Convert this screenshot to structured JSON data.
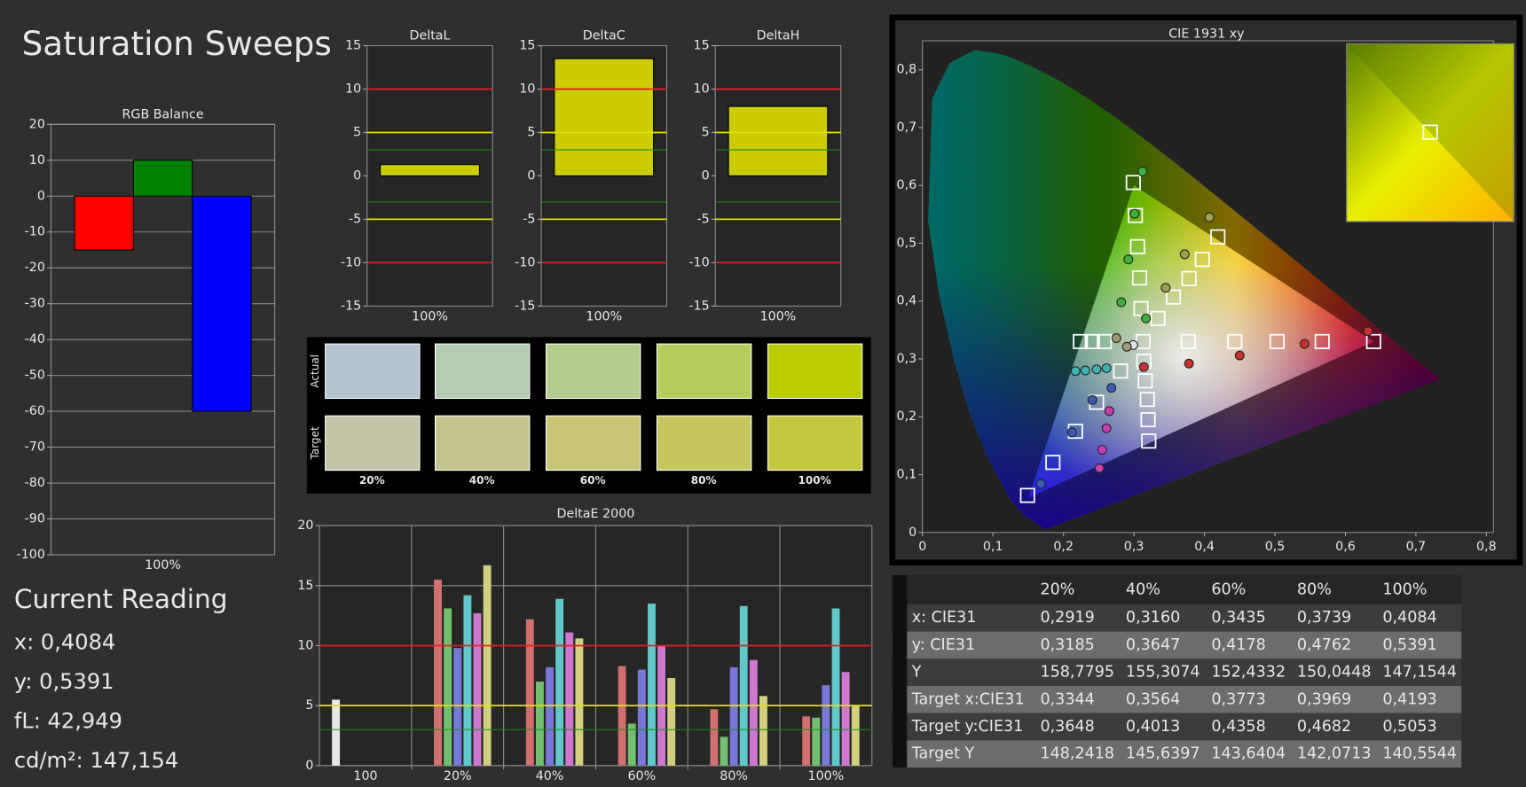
{
  "title": "Saturation Sweeps",
  "current_reading": {
    "title": "Current Reading",
    "lines": [
      "x: 0,4084",
      "y: 0,5391",
      "fL: 42,949",
      "cd/m²: 147,154"
    ]
  },
  "swatches": {
    "row_labels": [
      "Actual",
      "Target"
    ],
    "columns": [
      "20%",
      "40%",
      "60%",
      "80%",
      "100%"
    ],
    "actual_colors": [
      "#b4c4d2",
      "#b4cdb2",
      "#b4cc8c",
      "#b4cc5c",
      "#b8cc00"
    ],
    "target_colors": [
      "#c4c4a8",
      "#c4c48e",
      "#c6c676",
      "#c6c65e",
      "#c6c63e"
    ]
  },
  "table": {
    "header": [
      "",
      "20%",
      "40%",
      "60%",
      "80%",
      "100%"
    ],
    "rows": [
      [
        "x: CIE31",
        "0,2919",
        "0,3160",
        "0,3435",
        "0,3739",
        "0,4084"
      ],
      [
        "y: CIE31",
        "0,3185",
        "0,3647",
        "0,4178",
        "0,4762",
        "0,5391"
      ],
      [
        "Y",
        "158,7795",
        "155,3074",
        "152,4332",
        "150,0448",
        "147,1544"
      ],
      [
        "Target x:CIE31",
        "0,3344",
        "0,3564",
        "0,3773",
        "0,3969",
        "0,4193"
      ],
      [
        "Target y:CIE31",
        "0,3648",
        "0,4013",
        "0,4358",
        "0,4682",
        "0,5053"
      ],
      [
        "Target Y",
        "148,2418",
        "145,6397",
        "143,6404",
        "142,0713",
        "140,5544"
      ]
    ]
  },
  "chart_data": [
    {
      "type": "bar",
      "title": "RGB Balance",
      "categories": [
        "100%"
      ],
      "series": [
        {
          "color": "#ff0000",
          "values": [
            -15
          ]
        },
        {
          "color": "#008000",
          "values": [
            10
          ]
        },
        {
          "color": "#0000ff",
          "values": [
            -60
          ]
        }
      ],
      "ylim": [
        -100,
        20
      ],
      "yticks": [
        -100,
        -90,
        -80,
        -70,
        -60,
        -50,
        -40,
        -30,
        -20,
        -10,
        0,
        10,
        20
      ],
      "grid": true
    },
    {
      "type": "bar",
      "title": "DeltaL",
      "categories": [
        "100%"
      ],
      "values": [
        1.3
      ],
      "color": "#cccc00",
      "ylim": [
        -15,
        15
      ],
      "yticks": [
        -15,
        -10,
        -5,
        0,
        5,
        10,
        15
      ],
      "grid": false,
      "ref_lines": [
        {
          "value": 10,
          "color": "#e02020"
        },
        {
          "value": -10,
          "color": "#e02020"
        },
        {
          "value": 5,
          "color": "#e0e000"
        },
        {
          "value": -5,
          "color": "#e0e000"
        },
        {
          "value": 3,
          "color": "#1a8a1a"
        },
        {
          "value": -3,
          "color": "#1a8a1a"
        }
      ]
    },
    {
      "type": "bar",
      "title": "DeltaC",
      "categories": [
        "100%"
      ],
      "values": [
        13.5
      ],
      "color": "#cccc00",
      "ylim": [
        -15,
        15
      ],
      "yticks": [
        -15,
        -10,
        -5,
        0,
        5,
        10,
        15
      ],
      "grid": false,
      "ref_lines": [
        {
          "value": 10,
          "color": "#e02020"
        },
        {
          "value": -10,
          "color": "#e02020"
        },
        {
          "value": 5,
          "color": "#e0e000"
        },
        {
          "value": -5,
          "color": "#e0e000"
        },
        {
          "value": 3,
          "color": "#1a8a1a"
        },
        {
          "value": -3,
          "color": "#1a8a1a"
        }
      ]
    },
    {
      "type": "bar",
      "title": "DeltaH",
      "categories": [
        "100%"
      ],
      "values": [
        8
      ],
      "color": "#cccc00",
      "ylim": [
        -15,
        15
      ],
      "yticks": [
        -15,
        -10,
        -5,
        0,
        5,
        10,
        15
      ],
      "grid": false,
      "ref_lines": [
        {
          "value": 10,
          "color": "#e02020"
        },
        {
          "value": -10,
          "color": "#e02020"
        },
        {
          "value": 5,
          "color": "#e0e000"
        },
        {
          "value": -5,
          "color": "#e0e000"
        },
        {
          "value": 3,
          "color": "#1a8a1a"
        },
        {
          "value": -3,
          "color": "#1a8a1a"
        }
      ]
    },
    {
      "type": "bar",
      "title": "DeltaE 2000",
      "categories": [
        "100",
        "20%",
        "40%",
        "60%",
        "80%",
        "100%"
      ],
      "series": [
        {
          "color": "#e8e8e8",
          "values": [
            5.5,
            null,
            null,
            null,
            null,
            null
          ]
        },
        {
          "color": "#d07070",
          "values": [
            null,
            15.5,
            12.2,
            8.3,
            4.7,
            4.1
          ]
        },
        {
          "color": "#70c070",
          "values": [
            null,
            13.1,
            7,
            3.5,
            2.4,
            4
          ]
        },
        {
          "color": "#7878d8",
          "values": [
            null,
            9.8,
            8.2,
            8,
            8.2,
            6.7
          ]
        },
        {
          "color": "#60c8c8",
          "values": [
            null,
            14.2,
            13.9,
            13.5,
            13.3,
            13.1
          ]
        },
        {
          "color": "#d078d0",
          "values": [
            null,
            12.7,
            11.1,
            10,
            8.8,
            7.8
          ]
        },
        {
          "color": "#d0d080",
          "values": [
            null,
            16.7,
            10.6,
            7.3,
            5.8,
            5
          ]
        }
      ],
      "ylim": [
        0,
        20
      ],
      "yticks": [
        0,
        5,
        10,
        15,
        20
      ],
      "grid": true,
      "ref_lines": [
        {
          "value": 10,
          "color": "#e02020"
        },
        {
          "value": 5,
          "color": "#e0e000"
        },
        {
          "value": 3,
          "color": "#1a8a1a"
        }
      ]
    },
    {
      "type": "scatter",
      "title": "CIE 1931 xy",
      "xlim": [
        0,
        0.81
      ],
      "ylim": [
        0,
        0.85
      ],
      "xticks": [
        0,
        {
          "value": 0.1,
          "label": "0,1"
        },
        {
          "value": 0.2,
          "label": "0,2"
        },
        {
          "value": 0.3,
          "label": "0,3"
        },
        {
          "value": 0.4,
          "label": "0,4"
        },
        {
          "value": 0.5,
          "label": "0,5"
        },
        {
          "value": 0.6,
          "label": "0,6"
        },
        {
          "value": 0.7,
          "label": "0,7"
        },
        {
          "value": 0.8,
          "label": "0,8"
        }
      ],
      "yticks": [
        0,
        {
          "value": 0.1,
          "label": "0,1"
        },
        {
          "value": 0.2,
          "label": "0,2"
        },
        {
          "value": 0.3,
          "label": "0,3"
        },
        {
          "value": 0.4,
          "label": "0,4"
        },
        {
          "value": 0.5,
          "label": "0,5"
        },
        {
          "value": 0.6,
          "label": "0,6"
        },
        {
          "value": 0.7,
          "label": "0,7"
        },
        {
          "value": 0.8,
          "label": "0,8"
        }
      ],
      "series": [
        {
          "marker": "square",
          "color": "#ffffff",
          "x": [
            0.224,
            0.241,
            0.258,
            0.313,
            0.377,
            0.443,
            0.503,
            0.567,
            0.64,
            0.149,
            0.185,
            0.217,
            0.247,
            0.281,
            0.299,
            0.302,
            0.305,
            0.308,
            0.31,
            0.419,
            0.397,
            0.378,
            0.356,
            0.334,
            0.321,
            0.32,
            0.319,
            0.316,
            0.314
          ],
          "y": [
            0.33,
            0.33,
            0.33,
            0.33,
            0.33,
            0.33,
            0.33,
            0.33,
            0.33,
            0.064,
            0.121,
            0.175,
            0.225,
            0.279,
            0.605,
            0.548,
            0.494,
            0.44,
            0.387,
            0.511,
            0.472,
            0.439,
            0.407,
            0.37,
            0.158,
            0.195,
            0.23,
            0.262,
            0.296
          ]
        },
        {
          "marker": "circle",
          "color": "#c83232",
          "x": [
            0.632,
            0.542,
            0.45,
            0.378,
            0.314
          ],
          "y": [
            0.348,
            0.326,
            0.306,
            0.292,
            0.286
          ]
        },
        {
          "marker": "circle",
          "color": "#3cb43c",
          "x": [
            0.312,
            0.301,
            0.292,
            0.282,
            0.317
          ],
          "y": [
            0.624,
            0.551,
            0.472,
            0.398,
            0.37
          ]
        },
        {
          "marker": "circle",
          "color": "#a0a050",
          "x": [
            0.407,
            0.372,
            0.345
          ],
          "y": [
            0.545,
            0.481,
            0.423
          ]
        },
        {
          "marker": "circle",
          "color": "#3c5ab4",
          "x": [
            0.168,
            0.212,
            0.241,
            0.268
          ],
          "y": [
            0.084,
            0.173,
            0.229,
            0.25
          ]
        },
        {
          "marker": "circle",
          "color": "#3cb4b4",
          "x": [
            0.217,
            0.231,
            0.247,
            0.261
          ],
          "y": [
            0.279,
            0.28,
            0.282,
            0.284
          ]
        },
        {
          "marker": "circle",
          "color": "#c83cb4",
          "x": [
            0.251,
            0.255,
            0.261,
            0.265
          ],
          "y": [
            0.111,
            0.143,
            0.18,
            0.21
          ]
        },
        {
          "marker": "circle",
          "color": "#e6e6e6",
          "x": [
            0.299
          ],
          "y": [
            0.324
          ]
        },
        {
          "marker": "circle",
          "color": "#a09a7a",
          "x": [
            0.275,
            0.29
          ],
          "y": [
            0.336,
            0.321
          ]
        }
      ]
    }
  ]
}
